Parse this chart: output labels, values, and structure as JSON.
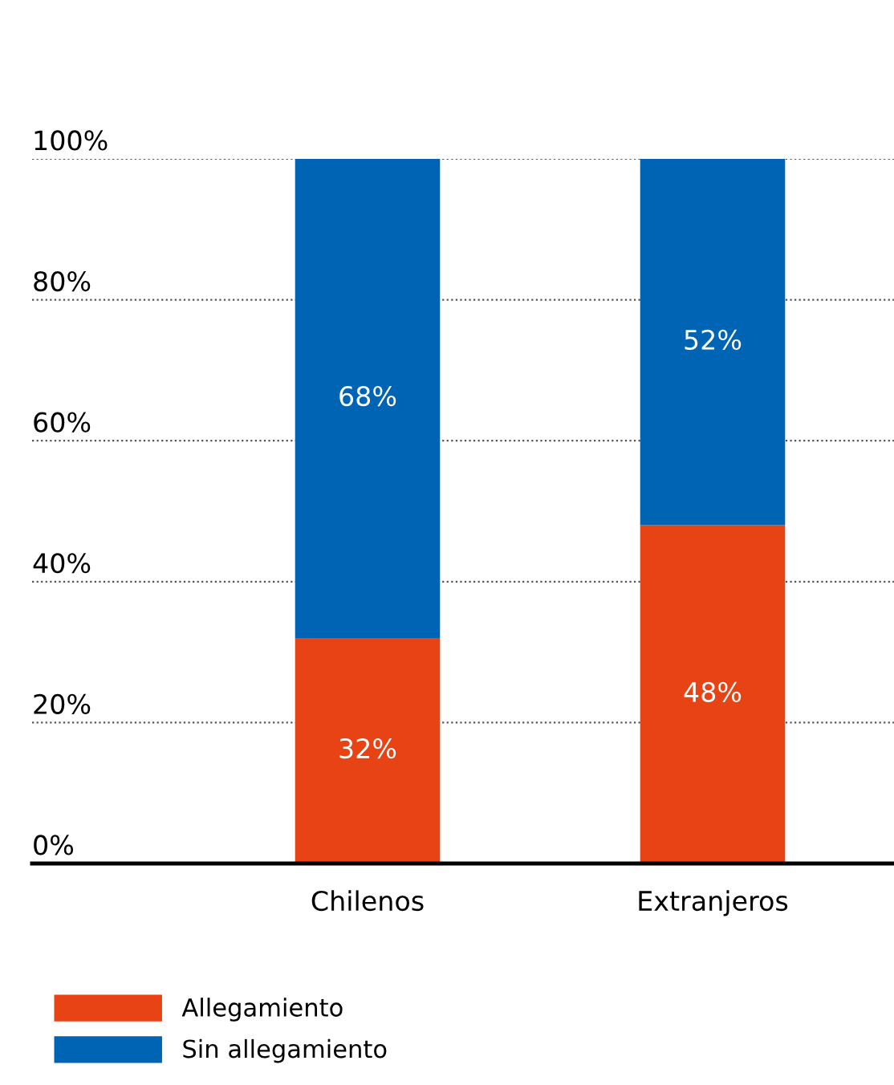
{
  "chart_data": {
    "type": "bar",
    "stacked": true,
    "categories": [
      "Chilenos",
      "Extranjeros"
    ],
    "series": [
      {
        "name": "Allegamiento",
        "color": "#e84315",
        "values": [
          32,
          48
        ]
      },
      {
        "name": "Sin allegamiento",
        "color": "#0064b4",
        "values": [
          68,
          52
        ]
      }
    ],
    "ylim": [
      0,
      100
    ],
    "yticks": [
      {
        "value": 0,
        "label": "0%"
      },
      {
        "value": 20,
        "label": "20%"
      },
      {
        "value": 40,
        "label": "40%"
      },
      {
        "value": 60,
        "label": "60%"
      },
      {
        "value": 80,
        "label": "80%"
      },
      {
        "value": 100,
        "label": "100%"
      }
    ],
    "value_labels": [
      [
        "32%",
        "48%"
      ],
      [
        "68%",
        "52%"
      ]
    ],
    "grid": "y",
    "legend": "bottom left"
  }
}
